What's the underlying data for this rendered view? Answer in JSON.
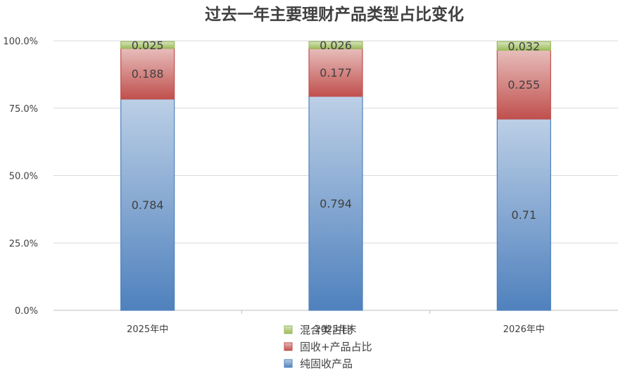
{
  "chart_data": {
    "type": "bar",
    "stacked": "percent",
    "title": "过去一年主要理财产品类型占比变化",
    "categories": [
      "2025年中",
      "2025年末",
      "2026年中"
    ],
    "series": [
      {
        "name": "纯固收产品",
        "values": [
          0.784,
          0.794,
          0.71
        ],
        "labels": [
          "0.784",
          "0.794",
          "0.71"
        ],
        "color": "#4f81bd"
      },
      {
        "name": "固收+产品占比",
        "values": [
          0.188,
          0.177,
          0.255
        ],
        "labels": [
          "0.188",
          "0.177",
          "0.255"
        ],
        "color": "#c0504d"
      },
      {
        "name": "混合类占比",
        "values": [
          0.025,
          0.026,
          0.032
        ],
        "labels": [
          "0.025",
          "0.026",
          "0.032"
        ],
        "color": "#9bbb59"
      }
    ],
    "yticks": [
      "0.0%",
      "25.0%",
      "50.0%",
      "75.0%",
      "100.0%"
    ],
    "ylim": [
      0,
      1
    ],
    "grid": true,
    "legend": "bottom-center",
    "legend_order": [
      "混合类占比",
      "固收+产品占比",
      "纯固收产品"
    ]
  }
}
